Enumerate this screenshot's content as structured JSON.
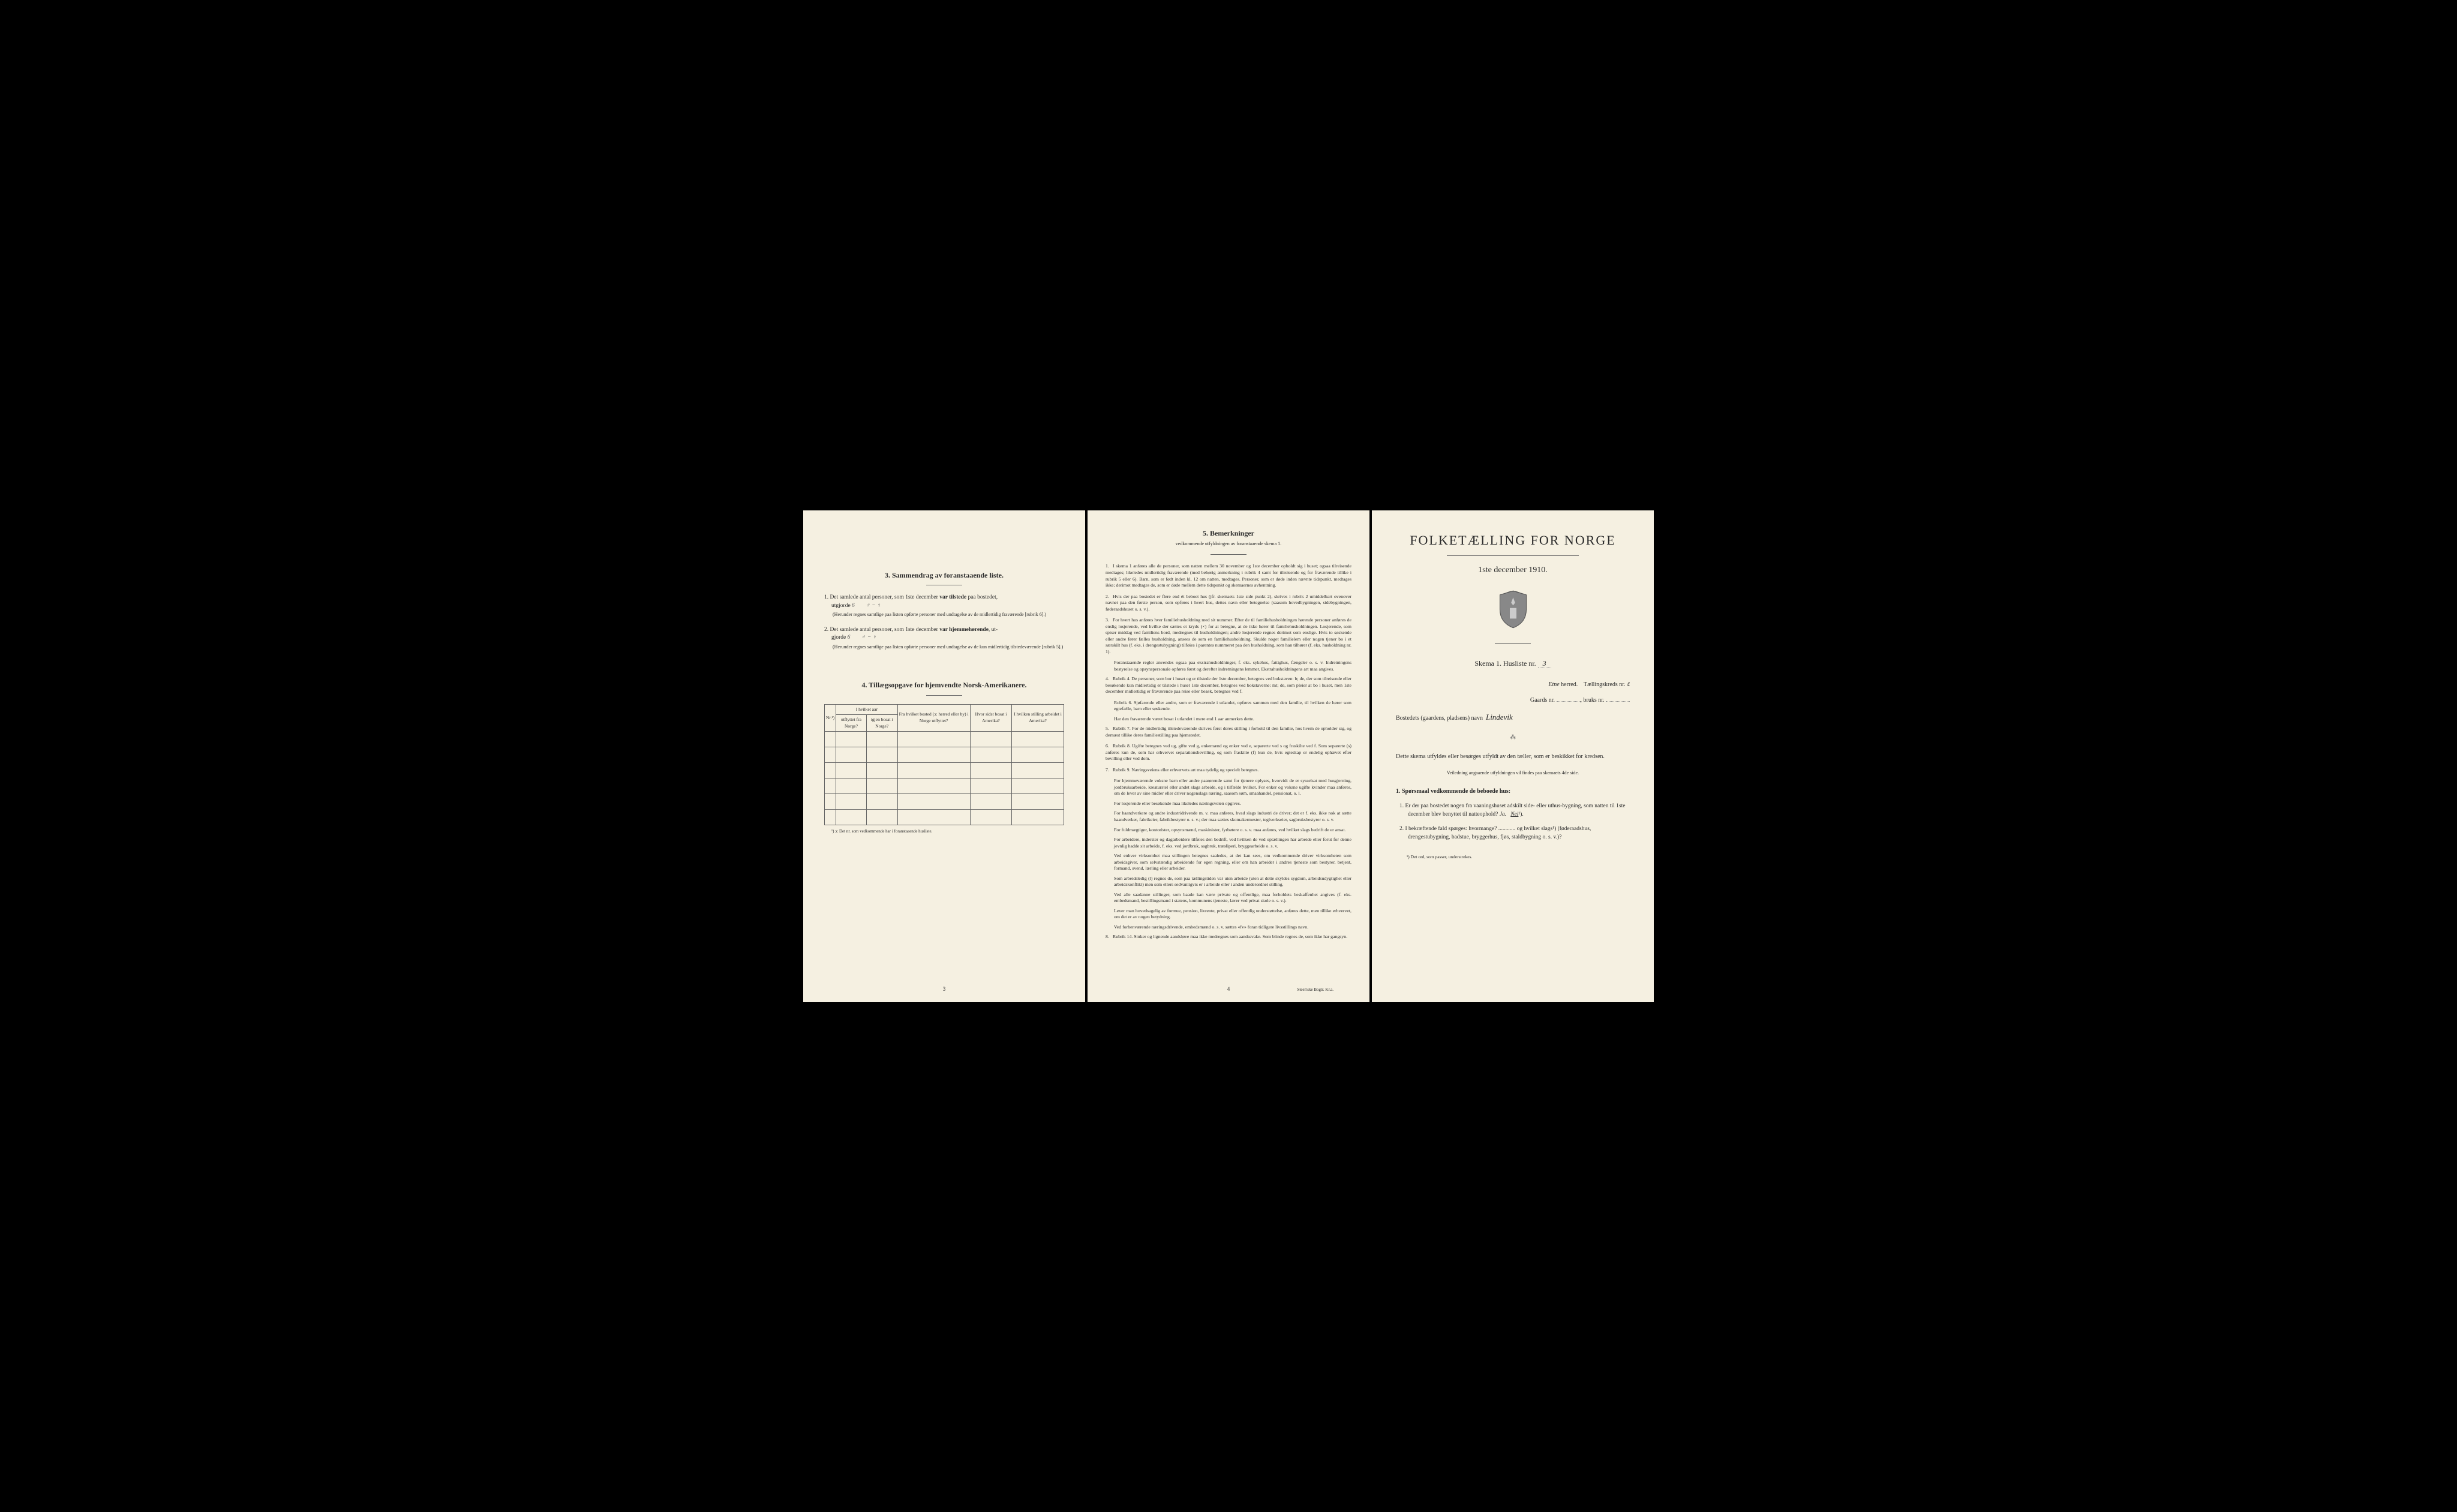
{
  "colors": {
    "paper": "#f5f0e1",
    "ink": "#2a2a2a",
    "background": "#000000",
    "ruleline": "#666666",
    "handwriting": "#555555"
  },
  "typography": {
    "body_pt": 9,
    "title_pt": 22,
    "table_pt": 7.5,
    "family": "Georgia / Times New Roman serif"
  },
  "left": {
    "section3": {
      "heading": "3.   Sammendrag av foranstaaende liste.",
      "item1": {
        "prefix": "1.   Det samlede antal personer, som 1ste december ",
        "bold": "var tilstede",
        "suffix": " paa bostedet,",
        "line2_prefix": "utgjorde",
        "value": "6",
        "marks": "♂ − ♀",
        "note": "(Herunder regnes samtlige paa listen opførte personer med undtagelse av de midlertidig fraværende [rubrik 6].)"
      },
      "item2": {
        "prefix": "2.   Det samlede antal personer, som 1ste december ",
        "bold": "var hjemmehørende",
        "suffix": ", ut-",
        "line2_prefix": "gjorde",
        "value": "6",
        "marks": "♂ − ♀",
        "note": "(Herunder regnes samtlige paa listen opførte personer med undtagelse av de kun midlertidig tilstedeværende [rubrik 5].)"
      }
    },
    "section4": {
      "heading": "4.   Tillægsopgave for hjemvendte Norsk-Amerikanere.",
      "table": {
        "headers": {
          "col1": "Nr.¹)",
          "col2_group": "I hvilket aar",
          "col2a": "utflyttet fra Norge?",
          "col2b": "igjen bosat i Norge?",
          "col3": "Fra hvilket bosted (ɔ: herred eller by) i Norge utflyttet?",
          "col4": "Hvor sidst bosat i Amerika?",
          "col5": "I hvilken stilling arbeidet i Amerika?"
        },
        "rows": 6,
        "footnote": "¹) ɔ: Det nr. som vedkommende har i foranstaaende husliste."
      }
    },
    "pagenum": "3"
  },
  "middle": {
    "heading": "5.   Bemerkninger",
    "subheading": "vedkommende utfyldningen av foranstaaende skema 1.",
    "items": [
      {
        "n": "1.",
        "text": "I skema 1 anføres alle de personer, som natten mellem 30 november og 1ste december opholdt sig i huset; ogsaa tilreisende medtages; likeledes midlertidig fraværende (med behørig anmerkning i rubrik 4 samt for tilreisende og for fraværende tillike i rubrik 5 eller 6). Barn, som er født inden kl. 12 om natten, medtages. Personer, som er døde inden nævnte tidspunkt, medtages ikke; derimot medtages de, som er døde mellem dette tidspunkt og skemaernes avhentning."
      },
      {
        "n": "2.",
        "text": "Hvis der paa bostedet er flere end ét beboet hus (jfr. skemaets 1ste side punkt 2), skrives i rubrik 2 umiddelbart ovenover navnet paa den første person, som opføres i hvert hus, dettes navn eller betegnelse (saasom hovedbygningen, sidebygningen, føderaadshuset o. s. v.)."
      },
      {
        "n": "3.",
        "text": "For hvert hus anføres hver familiehusholdning med sit nummer. Efter de til familiehusholdningen hørende personer anføres de enslig losjerende, ved hvilke der sættes et kryds (×) for at betegne, at de ikke hører til familiehusholdningen. Losjerende, som spiser middag ved familiens bord, medregnes til husholdningen; andre losjerende regnes derimot som enslige. Hvis to søskende eller andre fører fælles husholdning, ansees de som en familiehusholdning. Skulde noget familielem eller nogen tjener bo i et særskilt hus (f. eks. i drengestubygning) tilføies i parentes nummeret paa den husholdning, som han tilhører (f. eks. husholdning nr. 1)."
      },
      {
        "sub": true,
        "text": "Foranstaaende regler anvendes ogsaa paa ekstrahusholdninger, f. eks. sykehus, fattighus, fængsler o. s. v. Indretningens bestyrelse og opsynspersonale opføres først og derefter indretningens lemmer. Ekstrahusholdningens art maa angives."
      },
      {
        "n": "4.",
        "text": "Rubrik 4. De personer, som bor i huset og er tilstede der 1ste december, betegnes ved bokstaven: b; de, der som tilreisende eller besøkende kun midlertidig er tilstede i huset 1ste december, betegnes ved bokstaverne: mt; de, som pleier at bo i huset, men 1ste december midlertidig er fraværende paa reise eller besøk, betegnes ved f."
      },
      {
        "sub": true,
        "text": "Rubrik 6. Sjøfarende eller andre, som er fraværende i utlandet, opføres sammen med den familie, til hvilken de hører som egtefælle, barn eller søskende."
      },
      {
        "sub": true,
        "text": "Har den fraværende været bosat i utlandet i mere end 1 aar anmerkes dette."
      },
      {
        "n": "5.",
        "text": "Rubrik 7. For de midlertidig tilstedeværende skrives først deres stilling i forhold til den familie, hos hvem de opholder sig, og dernæst tillike deres familiestilling paa hjemstedet."
      },
      {
        "n": "6.",
        "text": "Rubrik 8. Ugifte betegnes ved ug, gifte ved g, enkemænd og enker ved e, separerte ved s og fraskilte ved f. Som separerte (s) anføres kun de, som har erhvervet separationsbevilling, og som fraskilte (f) kun de, hvis egteskap er endelig ophævet efter bevilling eller ved dom."
      },
      {
        "n": "7.",
        "text": "Rubrik 9. Næringsveiens eller erhvervets art maa tydelig og specielt betegnes."
      },
      {
        "sub": true,
        "text": "For hjemmeværende voksne barn eller andre paarørende samt for tjenere oplyses, hvorvidt de er sysselsat med husgjerning, jordbruksarbeide, kreaturstel eller andet slags arbeide, og i tilfælde hvilket. For enker og voksne ugifte kvinder maa anføres, om de lever av sine midler eller driver nogenslags næring, saasom søm, smaahandel, pensionat, o. l."
      },
      {
        "sub": true,
        "text": "For losjerende eller besøkende maa likeledes næringsveien opgives."
      },
      {
        "sub": true,
        "text": "For haandverkere og andre industridrivende m. v. maa anføres, hvad slags industri de driver; det er f. eks. ikke nok at sætte haandverker, fabrikeier, fabrikbestyrer o. s. v.; der maa sættes skomakermester, teglverkseier, sagbruksbestyrer o. s. v."
      },
      {
        "sub": true,
        "text": "For fuldmægtiger, kontorister, opsynsmænd, maskinister, fyrbøtere o. s. v. maa anføres, ved hvilket slags bedrift de er ansat."
      },
      {
        "sub": true,
        "text": "For arbeidere, inderster og dagarbeidere tilføies den bedrift, ved hvilken de ved optællingen har arbeide eller forut for denne jevnlig hadde sit arbeide, f. eks. ved jordbruk, sagbruk, træsliperi, bryggearbeide o. s. v."
      },
      {
        "sub": true,
        "text": "Ved enhver virksomhet maa stillingen betegnes saaledes, at det kan sees, om vedkommende driver virksomheten som arbeidsgiver, som selvstændig arbeidende for egen regning, eller om han arbeider i andres tjeneste som bestyrer, betjent, formand, svend, lærling eller arbeider."
      },
      {
        "sub": true,
        "text": "Som arbeidsledig (l) regnes de, som paa tællingstiden var uten arbeide (uten at dette skyldes sygdom, arbeidsudygtighet eller arbeidskonflikt) men som ellers sedvanligvis er i arbeide eller i anden underordnet stilling."
      },
      {
        "sub": true,
        "text": "Ved alle saadanne stillinger, som baade kan være private og offentlige, maa forholdets beskaffenhet angives (f. eks. embedsmand, bestillingsmand i statens, kommunens tjeneste, lærer ved privat skole o. s. v.)."
      },
      {
        "sub": true,
        "text": "Lever man hovedsagelig av formue, pension, livrente, privat eller offentlig understøttelse, anføres dette, men tillike erhvervet, om det er av nogen betydning."
      },
      {
        "sub": true,
        "text": "Ved forhenværende næringsdrivende, embedsmænd o. s. v. sættes «fv» foran tidligere livsstillings navn."
      },
      {
        "n": "8.",
        "text": "Rubrik 14. Sinker og lignende aandsløve maa ikke medregnes som aandssvake. Som blinde regnes de, som ikke har gangsyn."
      }
    ],
    "pagenum": "4",
    "printer": "Steen'ske Bogtr. Kr.a."
  },
  "right": {
    "title": "FOLKETÆLLING FOR NORGE",
    "date": "1ste december 1910.",
    "skema_label": "Skema 1.  Husliste nr.",
    "husliste_nr": "3",
    "herred_value": "Etne",
    "herred_label": "herred.",
    "tkreds_label": "Tællingskreds nr.",
    "tkreds_value": "4",
    "gaards_label": "Gaards nr.",
    "gaards_value": "",
    "bruks_label": "bruks nr.",
    "bruks_value": "",
    "bosted_label": "Bostedets (gaardens, pladsens) navn",
    "bosted_value": "Lindevik",
    "body": "Dette skema utfyldes eller besørges utfyldt av den tæller, som er beskikket for kredsen.",
    "guidance": "Veiledning angaaende utfyldningen vil findes paa skemaets 4de side.",
    "q_heading": "1. Spørsmaal vedkommende de beboede hus:",
    "q1": {
      "num": "1.",
      "text_a": "Er der paa bostedet nogen fra vaaningshuset adskilt side- eller uthus-bygning, som natten til 1ste december blev benyttet til natteophold?   ",
      "ja": "Ja.",
      "nei": "Nei",
      "nei_sup": "¹)."
    },
    "q2": {
      "num": "2.",
      "text": "I bekræftende fald spørges: hvormange? ............ og hvilket slags¹) (føderaadshus, drengestubygning, badstue, bryggerhus, fjøs, staldbygning o. s. v.)?"
    },
    "footnote": "¹) Det ord, som passer, understrekes."
  }
}
